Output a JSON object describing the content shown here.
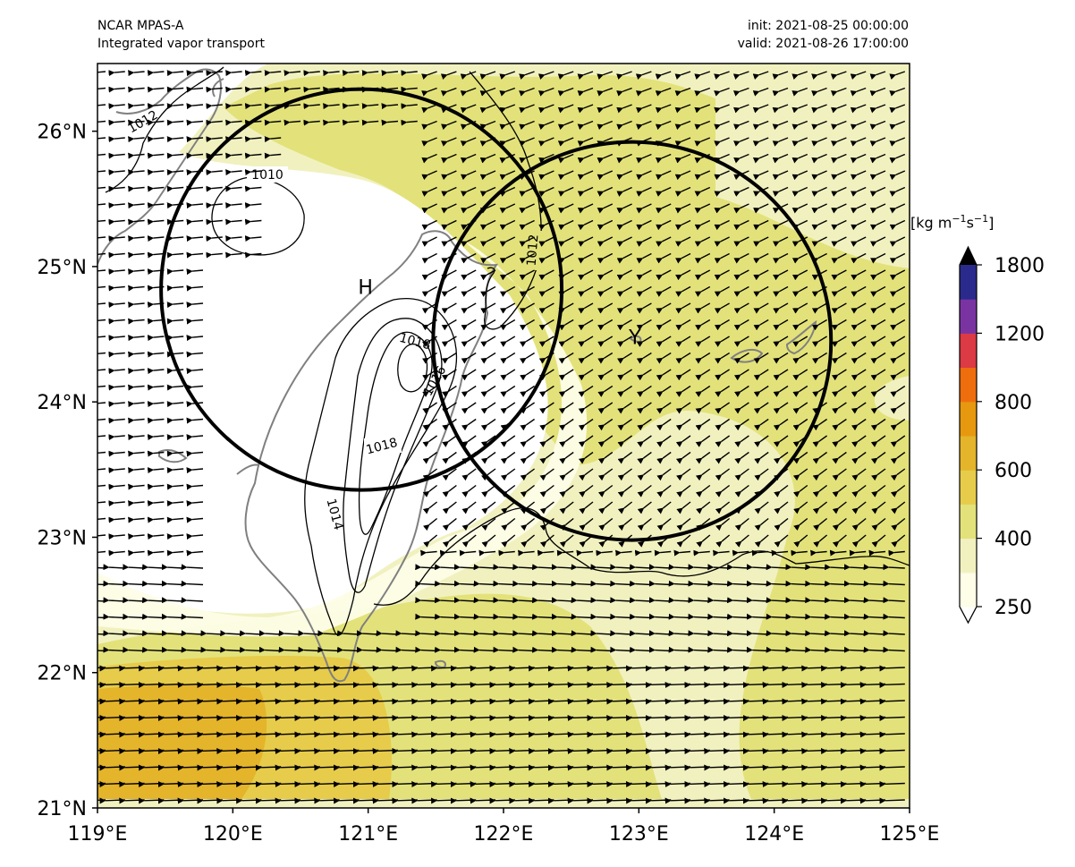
{
  "header": {
    "model": "NCAR MPAS-A",
    "field": "Integrated vapor transport",
    "init": "init: 2021-08-25 00:00:00",
    "valid": "valid: 2021-08-26 17:00:00"
  },
  "map": {
    "lon_range": [
      119,
      125
    ],
    "lat_range": [
      21,
      26.5
    ],
    "lon_ticks": [
      "119°E",
      "120°E",
      "121°E",
      "122°E",
      "123°E",
      "124°E",
      "125°E"
    ],
    "lat_ticks": [
      "21°N",
      "22°N",
      "23°N",
      "24°N",
      "25°N",
      "26°N"
    ],
    "markers": [
      {
        "label": "H",
        "lon": 120.98,
        "lat": 24.85
      },
      {
        "label": "Y",
        "lon": 122.97,
        "lat": 24.48
      }
    ],
    "circles": [
      {
        "center_lon": 120.95,
        "center_lat": 24.83,
        "radius_deg": 1.48
      },
      {
        "center_lon": 122.95,
        "center_lat": 24.45,
        "radius_deg": 1.47
      }
    ],
    "pressure_contour_labels": [
      "1010",
      "1012",
      "1012",
      "1014",
      "1016",
      "1018",
      "1018",
      "1016"
    ]
  },
  "colorbar": {
    "unit_prefix": "[kg m",
    "unit_exp1": "−1",
    "unit_mid": "s",
    "unit_exp2": "−1",
    "unit_suffix": "]",
    "tick_labels": [
      "250",
      "400",
      "600",
      "800",
      "1200",
      "1800"
    ],
    "colors": [
      "#fdfde8",
      "#f1f1c0",
      "#e3e27a",
      "#e6cc4a",
      "#e4b42a",
      "#e6980e",
      "#ee6e0e",
      "#dc3a44",
      "#7a34a2",
      "#2a2a8c"
    ],
    "over_color": "#000000"
  },
  "colors": {
    "ivt_250": "#fdfde8",
    "ivt_300": "#f1f1c0",
    "ivt_400": "#e3e27a",
    "ivt_500": "#e6cc4a",
    "ivt_550": "#e4b42a",
    "coastline": "#808080",
    "contour": "#000000"
  }
}
